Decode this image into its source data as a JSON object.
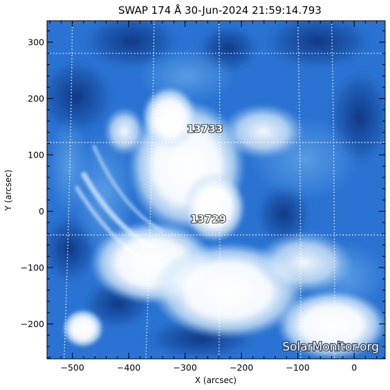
{
  "title": "SWAP 174 Å 30-Jun-2024 21:59:14.793",
  "axes": {
    "xlabel": "X (arcsec)",
    "ylabel": "Y (arcsec)",
    "xlim": [
      -545,
      55
    ],
    "ylim": [
      -262,
      338
    ],
    "xticks": [
      -500,
      -400,
      -300,
      -200,
      -100,
      0
    ],
    "yticks": [
      -200,
      -100,
      0,
      100,
      200,
      300
    ],
    "x_minor_step": 20,
    "y_minor_step": 20
  },
  "regions": [
    {
      "label": "13733",
      "x": -265,
      "y": 140
    },
    {
      "label": "13729",
      "x": -259,
      "y": -20
    }
  ],
  "grid": {
    "visible": true,
    "style": "dotted",
    "color": "#ffffff",
    "latitude_lines": [
      {
        "dx": 0,
        "dy": 280
      },
      {
        "dx": 0,
        "dy": 122
      },
      {
        "dx": 0,
        "dy": -42
      }
    ],
    "longitude_lines": [
      {
        "dx": -500,
        "dy": 280,
        "curvature": 0
      },
      {
        "dx": -355,
        "dy": 280,
        "curvature": 0
      },
      {
        "dx": -240,
        "dy": 280,
        "curvature": 0
      },
      {
        "dx": -40,
        "dy": 280,
        "curvature": 0
      },
      {
        "dx": -100,
        "dy": 280,
        "curvature": 0
      }
    ]
  },
  "colors": {
    "background": "#ffffff",
    "sky_dark": "#0e3b8c",
    "sky_mid": "#2a73d2",
    "sky_light": "#8fc0ee",
    "bright": "#ffffff",
    "axis": "#000000"
  },
  "watermark": "SolarMonitor.org"
}
